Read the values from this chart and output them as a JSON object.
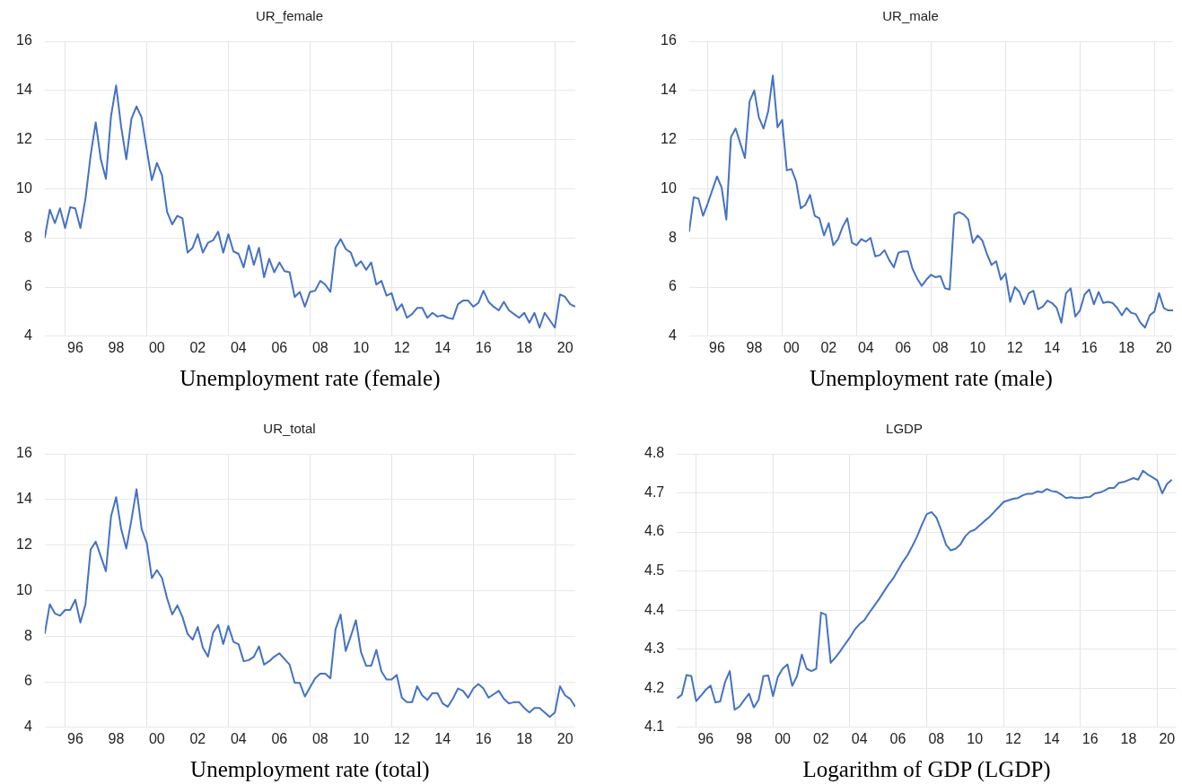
{
  "chart_data": [
    {
      "type": "line",
      "title": "UR_female",
      "xlabel": "Unemployment rate (female)",
      "grid": true,
      "xlim": [
        "1995-01",
        "2021-01"
      ],
      "ylim": [
        4,
        16
      ],
      "yticks": [
        4,
        6,
        8,
        10,
        12,
        14,
        16
      ],
      "xticks": [
        {
          "value": "1996-01",
          "label": null
        },
        {
          "value": "1996-07",
          "label": "96"
        },
        {
          "value": "1998-07",
          "label": "98"
        },
        {
          "value": "2000-01",
          "label": null
        },
        {
          "value": "2000-07",
          "label": "00"
        },
        {
          "value": "2002-07",
          "label": "02"
        },
        {
          "value": "2004-01",
          "label": null
        },
        {
          "value": "2004-07",
          "label": "04"
        },
        {
          "value": "2006-07",
          "label": "06"
        },
        {
          "value": "2008-01",
          "label": null
        },
        {
          "value": "2008-07",
          "label": "08"
        },
        {
          "value": "2010-07",
          "label": "10"
        },
        {
          "value": "2012-01",
          "label": null
        },
        {
          "value": "2012-07",
          "label": "12"
        },
        {
          "value": "2014-07",
          "label": "14"
        },
        {
          "value": "2016-01",
          "label": null
        },
        {
          "value": "2016-07",
          "label": "16"
        },
        {
          "value": "2018-07",
          "label": "18"
        },
        {
          "value": "2020-01",
          "label": null
        },
        {
          "value": "2020-07",
          "label": "20"
        }
      ],
      "x": [
        "1995-01",
        "1995-04",
        "1995-07",
        "1995-10",
        "1996-01",
        "1996-04",
        "1996-07",
        "1996-10",
        "1997-01",
        "1997-04",
        "1997-07",
        "1997-10",
        "1998-01",
        "1998-04",
        "1998-07",
        "1998-10",
        "1999-01",
        "1999-04",
        "1999-07",
        "1999-10",
        "2000-01",
        "2000-04",
        "2000-07",
        "2000-10",
        "2001-01",
        "2001-04",
        "2001-07",
        "2001-10",
        "2002-01",
        "2002-04",
        "2002-07",
        "2002-10",
        "2003-01",
        "2003-04",
        "2003-07",
        "2003-10",
        "2004-01",
        "2004-04",
        "2004-07",
        "2004-10",
        "2005-01",
        "2005-04",
        "2005-07",
        "2005-10",
        "2006-01",
        "2006-04",
        "2006-07",
        "2006-10",
        "2007-01",
        "2007-04",
        "2007-07",
        "2007-10",
        "2008-01",
        "2008-04",
        "2008-07",
        "2008-10",
        "2009-01",
        "2009-04",
        "2009-07",
        "2009-10",
        "2010-01",
        "2010-04",
        "2010-07",
        "2010-10",
        "2011-01",
        "2011-04",
        "2011-07",
        "2011-10",
        "2012-01",
        "2012-04",
        "2012-07",
        "2012-10",
        "2013-01",
        "2013-04",
        "2013-07",
        "2013-10",
        "2014-01",
        "2014-04",
        "2014-07",
        "2014-10",
        "2015-01",
        "2015-04",
        "2015-07",
        "2015-10",
        "2016-01",
        "2016-04",
        "2016-07",
        "2016-10",
        "2017-01",
        "2017-04",
        "2017-07",
        "2017-10",
        "2018-01",
        "2018-04",
        "2018-07",
        "2018-10",
        "2019-01",
        "2019-04",
        "2019-07",
        "2019-10",
        "2020-01",
        "2020-04",
        "2020-07",
        "2020-10",
        "2021-01"
      ],
      "series": [
        {
          "color": "#4472c4",
          "values": [
            8.0,
            9.15,
            8.6,
            9.2,
            8.4,
            9.25,
            9.2,
            8.4,
            9.6,
            11.35,
            12.7,
            11.2,
            10.4,
            12.95,
            14.2,
            12.5,
            11.2,
            12.85,
            13.35,
            12.9,
            11.6,
            10.35,
            11.05,
            10.55,
            9.05,
            8.55,
            8.9,
            8.8,
            7.4,
            7.6,
            8.15,
            7.4,
            7.8,
            7.9,
            8.25,
            7.4,
            8.15,
            7.45,
            7.35,
            6.8,
            7.7,
            6.9,
            7.6,
            6.4,
            7.15,
            6.6,
            7.0,
            6.65,
            6.6,
            5.6,
            5.8,
            5.2,
            5.8,
            5.85,
            6.25,
            6.1,
            5.8,
            7.6,
            7.95,
            7.55,
            7.4,
            6.85,
            7.05,
            6.7,
            7.0,
            6.1,
            6.25,
            5.65,
            5.75,
            5.05,
            5.3,
            4.75,
            4.9,
            5.15,
            5.15,
            4.75,
            4.95,
            4.8,
            4.85,
            4.75,
            4.7,
            5.3,
            5.45,
            5.45,
            5.2,
            5.35,
            5.85,
            5.4,
            5.2,
            5.05,
            5.4,
            5.05,
            4.9,
            4.75,
            4.95,
            4.55,
            4.95,
            4.35,
            4.95,
            4.65,
            4.35,
            5.7,
            5.6,
            5.3,
            5.2
          ]
        }
      ]
    },
    {
      "type": "line",
      "title": "UR_male",
      "xlabel": "Unemployment rate (male)",
      "grid": true,
      "xlim": [
        "1995-01",
        "2021-01"
      ],
      "ylim": [
        4,
        16
      ],
      "yticks": [
        4,
        6,
        8,
        10,
        12,
        14,
        16
      ],
      "xticks": [
        {
          "value": "1996-01",
          "label": null
        },
        {
          "value": "1996-07",
          "label": "96"
        },
        {
          "value": "1998-07",
          "label": "98"
        },
        {
          "value": "2000-01",
          "label": null
        },
        {
          "value": "2000-07",
          "label": "00"
        },
        {
          "value": "2002-07",
          "label": "02"
        },
        {
          "value": "2004-01",
          "label": null
        },
        {
          "value": "2004-07",
          "label": "04"
        },
        {
          "value": "2006-07",
          "label": "06"
        },
        {
          "value": "2008-01",
          "label": null
        },
        {
          "value": "2008-07",
          "label": "08"
        },
        {
          "value": "2010-07",
          "label": "10"
        },
        {
          "value": "2012-01",
          "label": null
        },
        {
          "value": "2012-07",
          "label": "12"
        },
        {
          "value": "2014-07",
          "label": "14"
        },
        {
          "value": "2016-01",
          "label": null
        },
        {
          "value": "2016-07",
          "label": "16"
        },
        {
          "value": "2018-07",
          "label": "18"
        },
        {
          "value": "2020-01",
          "label": null
        },
        {
          "value": "2020-07",
          "label": "20"
        }
      ],
      "x": [
        "1995-01",
        "1995-04",
        "1995-07",
        "1995-10",
        "1996-01",
        "1996-04",
        "1996-07",
        "1996-10",
        "1997-01",
        "1997-04",
        "1997-07",
        "1997-10",
        "1998-01",
        "1998-04",
        "1998-07",
        "1998-10",
        "1999-01",
        "1999-04",
        "1999-07",
        "1999-10",
        "2000-01",
        "2000-04",
        "2000-07",
        "2000-10",
        "2001-01",
        "2001-04",
        "2001-07",
        "2001-10",
        "2002-01",
        "2002-04",
        "2002-07",
        "2002-10",
        "2003-01",
        "2003-04",
        "2003-07",
        "2003-10",
        "2004-01",
        "2004-04",
        "2004-07",
        "2004-10",
        "2005-01",
        "2005-04",
        "2005-07",
        "2005-10",
        "2006-01",
        "2006-04",
        "2006-07",
        "2006-10",
        "2007-01",
        "2007-04",
        "2007-07",
        "2007-10",
        "2008-01",
        "2008-04",
        "2008-07",
        "2008-10",
        "2009-01",
        "2009-04",
        "2009-07",
        "2009-10",
        "2010-01",
        "2010-04",
        "2010-07",
        "2010-10",
        "2011-01",
        "2011-04",
        "2011-07",
        "2011-10",
        "2012-01",
        "2012-04",
        "2012-07",
        "2012-10",
        "2013-01",
        "2013-04",
        "2013-07",
        "2013-10",
        "2014-01",
        "2014-04",
        "2014-07",
        "2014-10",
        "2015-01",
        "2015-04",
        "2015-07",
        "2015-10",
        "2016-01",
        "2016-04",
        "2016-07",
        "2016-10",
        "2017-01",
        "2017-04",
        "2017-07",
        "2017-10",
        "2018-01",
        "2018-04",
        "2018-07",
        "2018-10",
        "2019-01",
        "2019-04",
        "2019-07",
        "2019-10",
        "2020-01",
        "2020-04",
        "2020-07",
        "2020-10",
        "2021-01"
      ],
      "series": [
        {
          "color": "#4472c4",
          "values": [
            8.25,
            9.65,
            9.6,
            8.9,
            9.4,
            9.95,
            10.5,
            10.05,
            8.75,
            12.1,
            12.45,
            11.85,
            11.25,
            13.55,
            14.0,
            12.9,
            12.45,
            13.15,
            14.6,
            12.5,
            12.8,
            10.75,
            10.8,
            10.3,
            9.2,
            9.35,
            9.75,
            8.9,
            8.8,
            8.1,
            8.6,
            7.7,
            7.95,
            8.45,
            8.8,
            7.8,
            7.7,
            7.95,
            7.85,
            8.0,
            7.25,
            7.3,
            7.5,
            7.1,
            6.8,
            7.4,
            7.45,
            7.45,
            6.75,
            6.35,
            6.05,
            6.3,
            6.5,
            6.4,
            6.45,
            5.95,
            5.9,
            8.95,
            9.05,
            8.95,
            8.75,
            7.8,
            8.1,
            7.9,
            7.35,
            6.9,
            7.05,
            6.3,
            6.55,
            5.4,
            6.0,
            5.8,
            5.3,
            5.75,
            5.85,
            5.1,
            5.2,
            5.45,
            5.35,
            5.15,
            4.55,
            5.75,
            5.95,
            4.8,
            5.05,
            5.7,
            5.9,
            5.3,
            5.8,
            5.35,
            5.4,
            5.35,
            5.15,
            4.85,
            5.15,
            4.95,
            4.9,
            4.55,
            4.35,
            4.85,
            5.0,
            5.75,
            5.15,
            5.05,
            5.05
          ]
        }
      ]
    },
    {
      "type": "line",
      "title": "UR_total",
      "xlabel": "Unemployment rate (total)",
      "grid": true,
      "xlim": [
        "1995-01",
        "2021-01"
      ],
      "ylim": [
        4,
        16
      ],
      "yticks": [
        4,
        6,
        8,
        10,
        12,
        14,
        16
      ],
      "xticks": [
        {
          "value": "1996-01",
          "label": null
        },
        {
          "value": "1996-07",
          "label": "96"
        },
        {
          "value": "1998-07",
          "label": "98"
        },
        {
          "value": "2000-01",
          "label": null
        },
        {
          "value": "2000-07",
          "label": "00"
        },
        {
          "value": "2002-07",
          "label": "02"
        },
        {
          "value": "2004-01",
          "label": null
        },
        {
          "value": "2004-07",
          "label": "04"
        },
        {
          "value": "2006-07",
          "label": "06"
        },
        {
          "value": "2008-01",
          "label": null
        },
        {
          "value": "2008-07",
          "label": "08"
        },
        {
          "value": "2010-07",
          "label": "10"
        },
        {
          "value": "2012-01",
          "label": null
        },
        {
          "value": "2012-07",
          "label": "12"
        },
        {
          "value": "2014-07",
          "label": "14"
        },
        {
          "value": "2016-01",
          "label": null
        },
        {
          "value": "2016-07",
          "label": "16"
        },
        {
          "value": "2018-07",
          "label": "18"
        },
        {
          "value": "2020-01",
          "label": null
        },
        {
          "value": "2020-07",
          "label": "20"
        }
      ],
      "x": [
        "1995-01",
        "1995-04",
        "1995-07",
        "1995-10",
        "1996-01",
        "1996-04",
        "1996-07",
        "1996-10",
        "1997-01",
        "1997-04",
        "1997-07",
        "1997-10",
        "1998-01",
        "1998-04",
        "1998-07",
        "1998-10",
        "1999-01",
        "1999-04",
        "1999-07",
        "1999-10",
        "2000-01",
        "2000-04",
        "2000-07",
        "2000-10",
        "2001-01",
        "2001-04",
        "2001-07",
        "2001-10",
        "2002-01",
        "2002-04",
        "2002-07",
        "2002-10",
        "2003-01",
        "2003-04",
        "2003-07",
        "2003-10",
        "2004-01",
        "2004-04",
        "2004-07",
        "2004-10",
        "2005-01",
        "2005-04",
        "2005-07",
        "2005-10",
        "2006-01",
        "2006-04",
        "2006-07",
        "2006-10",
        "2007-01",
        "2007-04",
        "2007-07",
        "2007-10",
        "2008-01",
        "2008-04",
        "2008-07",
        "2008-10",
        "2009-01",
        "2009-04",
        "2009-07",
        "2009-10",
        "2010-01",
        "2010-04",
        "2010-07",
        "2010-10",
        "2011-01",
        "2011-04",
        "2011-07",
        "2011-10",
        "2012-01",
        "2012-04",
        "2012-07",
        "2012-10",
        "2013-01",
        "2013-04",
        "2013-07",
        "2013-10",
        "2014-01",
        "2014-04",
        "2014-07",
        "2014-10",
        "2015-01",
        "2015-04",
        "2015-07",
        "2015-10",
        "2016-01",
        "2016-04",
        "2016-07",
        "2016-10",
        "2017-01",
        "2017-04",
        "2017-07",
        "2017-10",
        "2018-01",
        "2018-04",
        "2018-07",
        "2018-10",
        "2019-01",
        "2019-04",
        "2019-07",
        "2019-10",
        "2020-01",
        "2020-04",
        "2020-07",
        "2020-10",
        "2021-01"
      ],
      "series": [
        {
          "color": "#4472c4",
          "values": [
            8.1,
            9.4,
            9.0,
            8.9,
            9.15,
            9.15,
            9.6,
            8.6,
            9.4,
            11.8,
            12.15,
            11.5,
            10.85,
            13.25,
            14.1,
            12.7,
            11.85,
            13.1,
            14.45,
            12.7,
            12.1,
            10.55,
            10.9,
            10.55,
            9.65,
            8.95,
            9.35,
            8.85,
            8.1,
            7.85,
            8.4,
            7.5,
            7.1,
            8.15,
            8.5,
            7.65,
            8.45,
            7.75,
            7.65,
            6.9,
            6.95,
            7.1,
            7.55,
            6.75,
            6.9,
            7.1,
            7.25,
            7.0,
            6.75,
            5.95,
            5.95,
            5.35,
            5.75,
            6.15,
            6.35,
            6.35,
            6.15,
            8.3,
            8.95,
            7.35,
            8.0,
            8.7,
            7.3,
            6.7,
            6.7,
            7.4,
            6.45,
            6.1,
            6.1,
            6.3,
            5.3,
            5.1,
            5.1,
            5.8,
            5.4,
            5.2,
            5.5,
            5.5,
            5.05,
            4.9,
            5.25,
            5.7,
            5.6,
            5.3,
            5.7,
            5.9,
            5.7,
            5.3,
            5.45,
            5.6,
            5.25,
            5.05,
            5.1,
            5.1,
            4.85,
            4.65,
            4.85,
            4.85,
            4.65,
            4.45,
            4.65,
            5.8,
            5.4,
            5.25,
            4.9
          ]
        }
      ]
    },
    {
      "type": "line",
      "title": "LGDP",
      "xlabel": "Logarithm of GDP (LGDP)",
      "grid": true,
      "xlim": [
        "1995-01",
        "2021-01"
      ],
      "ylim": [
        4.1,
        4.8
      ],
      "yticks": [
        4.1,
        4.2,
        4.3,
        4.4,
        4.5,
        4.6,
        4.7,
        4.8
      ],
      "xticks": [
        {
          "value": "1996-01",
          "label": null
        },
        {
          "value": "1996-07",
          "label": "96"
        },
        {
          "value": "1998-07",
          "label": "98"
        },
        {
          "value": "2000-01",
          "label": null
        },
        {
          "value": "2000-07",
          "label": "00"
        },
        {
          "value": "2002-07",
          "label": "02"
        },
        {
          "value": "2004-01",
          "label": null
        },
        {
          "value": "2004-07",
          "label": "04"
        },
        {
          "value": "2006-07",
          "label": "06"
        },
        {
          "value": "2008-01",
          "label": null
        },
        {
          "value": "2008-07",
          "label": "08"
        },
        {
          "value": "2010-07",
          "label": "10"
        },
        {
          "value": "2012-01",
          "label": null
        },
        {
          "value": "2012-07",
          "label": "12"
        },
        {
          "value": "2014-07",
          "label": "14"
        },
        {
          "value": "2016-01",
          "label": null
        },
        {
          "value": "2016-07",
          "label": "16"
        },
        {
          "value": "2018-07",
          "label": "18"
        },
        {
          "value": "2020-01",
          "label": null
        },
        {
          "value": "2020-07",
          "label": "20"
        }
      ],
      "x": [
        "1995-01",
        "1995-04",
        "1995-07",
        "1995-10",
        "1996-01",
        "1996-04",
        "1996-07",
        "1996-10",
        "1997-01",
        "1997-04",
        "1997-07",
        "1997-10",
        "1998-01",
        "1998-04",
        "1998-07",
        "1998-10",
        "1999-01",
        "1999-04",
        "1999-07",
        "1999-10",
        "2000-01",
        "2000-04",
        "2000-07",
        "2000-10",
        "2001-01",
        "2001-04",
        "2001-07",
        "2001-10",
        "2002-01",
        "2002-04",
        "2002-07",
        "2002-10",
        "2003-01",
        "2003-04",
        "2003-07",
        "2003-10",
        "2004-01",
        "2004-04",
        "2004-07",
        "2004-10",
        "2005-01",
        "2005-04",
        "2005-07",
        "2005-10",
        "2006-01",
        "2006-04",
        "2006-07",
        "2006-10",
        "2007-01",
        "2007-04",
        "2007-07",
        "2007-10",
        "2008-01",
        "2008-04",
        "2008-07",
        "2008-10",
        "2009-01",
        "2009-04",
        "2009-07",
        "2009-10",
        "2010-01",
        "2010-04",
        "2010-07",
        "2010-10",
        "2011-01",
        "2011-04",
        "2011-07",
        "2011-10",
        "2012-01",
        "2012-04",
        "2012-07",
        "2012-10",
        "2013-01",
        "2013-04",
        "2013-07",
        "2013-10",
        "2014-01",
        "2014-04",
        "2014-07",
        "2014-10",
        "2015-01",
        "2015-04",
        "2015-07",
        "2015-10",
        "2016-01",
        "2016-04",
        "2016-07",
        "2016-10",
        "2017-01",
        "2017-04",
        "2017-07",
        "2017-10",
        "2018-01",
        "2018-04",
        "2018-07",
        "2018-10",
        "2019-01",
        "2019-04",
        "2019-07",
        "2019-10",
        "2020-01",
        "2020-04",
        "2020-07",
        "2020-10"
      ],
      "series": [
        {
          "color": "#4472c4",
          "values": [
            4.174,
            4.183,
            4.234,
            4.231,
            4.167,
            4.181,
            4.196,
            4.207,
            4.164,
            4.166,
            4.215,
            4.244,
            4.145,
            4.153,
            4.17,
            4.186,
            4.151,
            4.17,
            4.231,
            4.233,
            4.18,
            4.229,
            4.25,
            4.261,
            4.206,
            4.231,
            4.286,
            4.25,
            4.244,
            4.25,
            4.394,
            4.388,
            4.265,
            4.279,
            4.295,
            4.313,
            4.33,
            4.35,
            4.364,
            4.374,
            4.393,
            4.41,
            4.427,
            4.446,
            4.465,
            4.481,
            4.502,
            4.523,
            4.541,
            4.564,
            4.589,
            4.619,
            4.646,
            4.651,
            4.637,
            4.605,
            4.568,
            4.553,
            4.557,
            4.568,
            4.589,
            4.601,
            4.606,
            4.617,
            4.628,
            4.638,
            4.651,
            4.664,
            4.677,
            4.681,
            4.685,
            4.687,
            4.694,
            4.698,
            4.698,
            4.704,
            4.702,
            4.71,
            4.705,
            4.703,
            4.696,
            4.687,
            4.689,
            4.687,
            4.687,
            4.689,
            4.69,
            4.699,
            4.701,
            4.706,
            4.713,
            4.713,
            4.726,
            4.728,
            4.733,
            4.738,
            4.734,
            4.757,
            4.747,
            4.74,
            4.732,
            4.699,
            4.723,
            4.734
          ]
        }
      ]
    }
  ]
}
